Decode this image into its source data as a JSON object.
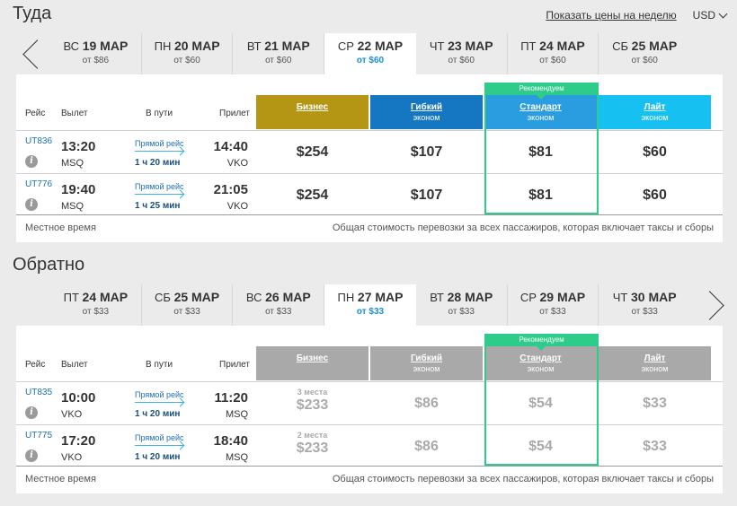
{
  "header": {
    "week_link": "Показать цены на неделю",
    "currency": "USD"
  },
  "columns": {
    "flight": "Рейс",
    "departure": "Вылет",
    "duration": "В пути",
    "arrival": "Прилет"
  },
  "fares": [
    {
      "name": "Бизнес",
      "sub": ""
    },
    {
      "name": "Гибкий",
      "sub": "эконом"
    },
    {
      "name": "Стандарт",
      "sub": "эконом"
    },
    {
      "name": "Лайт",
      "sub": "эконом"
    }
  ],
  "recommended_label": "Рекомендуем",
  "footer": {
    "local_time": "Местное время",
    "note": "Общая стоимость перевозки за всех пассажиров, которая включает таксы и сборы"
  },
  "outbound": {
    "title": "Туда",
    "dates": [
      {
        "dow": "ВС",
        "date": "19 МАР",
        "price": "от $86"
      },
      {
        "dow": "ПН",
        "date": "20 МАР",
        "price": "от $60"
      },
      {
        "dow": "ВТ",
        "date": "21 МАР",
        "price": "от $60"
      },
      {
        "dow": "СР",
        "date": "22 МАР",
        "price": "от $60"
      },
      {
        "dow": "ЧТ",
        "date": "23 МАР",
        "price": "от $60"
      },
      {
        "dow": "ПТ",
        "date": "24 МАР",
        "price": "от $60"
      },
      {
        "dow": "СБ",
        "date": "25 МАР",
        "price": "от $60"
      }
    ],
    "flights": [
      {
        "code": "UT836",
        "dep_time": "13:20",
        "dep_ap": "MSQ",
        "direct": "Прямой рейс",
        "duration": "1 ч 20 мин",
        "arr_time": "14:40",
        "arr_ap": "VKO",
        "prices": [
          "$254",
          "$107",
          "$81",
          "$60"
        ]
      },
      {
        "code": "UT776",
        "dep_time": "19:40",
        "dep_ap": "MSQ",
        "direct": "Прямой рейс",
        "duration": "1 ч 25 мин",
        "arr_time": "21:05",
        "arr_ap": "VKO",
        "prices": [
          "$254",
          "$107",
          "$81",
          "$60"
        ]
      }
    ]
  },
  "return": {
    "title": "Обратно",
    "dates": [
      {
        "dow": "ПТ",
        "date": "24 МАР",
        "price": "от $33"
      },
      {
        "dow": "СБ",
        "date": "25 МАР",
        "price": "от $33"
      },
      {
        "dow": "ВС",
        "date": "26 МАР",
        "price": "от $33"
      },
      {
        "dow": "ПН",
        "date": "27 МАР",
        "price": "от $33"
      },
      {
        "dow": "ВТ",
        "date": "28 МАР",
        "price": "от $33"
      },
      {
        "dow": "СР",
        "date": "29 МАР",
        "price": "от $33"
      },
      {
        "dow": "ЧТ",
        "date": "30 МАР",
        "price": "от $33"
      }
    ],
    "flights": [
      {
        "code": "UT835",
        "dep_time": "10:00",
        "dep_ap": "VKO",
        "direct": "Прямой рейс",
        "duration": "1 ч 20 мин",
        "arr_time": "11:20",
        "arr_ap": "MSQ",
        "seats": "3 места",
        "prices": [
          "$233",
          "$86",
          "$54",
          "$33"
        ]
      },
      {
        "code": "UT775",
        "dep_time": "17:20",
        "dep_ap": "VKO",
        "direct": "Прямой рейс",
        "duration": "1 ч 20 мин",
        "arr_time": "18:40",
        "arr_ap": "MSQ",
        "seats": "2 места",
        "prices": [
          "$233",
          "$86",
          "$54",
          "$33"
        ]
      }
    ]
  },
  "colors": {
    "business": "#b59614",
    "flex": "#1577c2",
    "standard": "#2a9de0",
    "light": "#16c1f2",
    "disabled": "#a9a9a9",
    "recommended": "#2ecc8b"
  }
}
